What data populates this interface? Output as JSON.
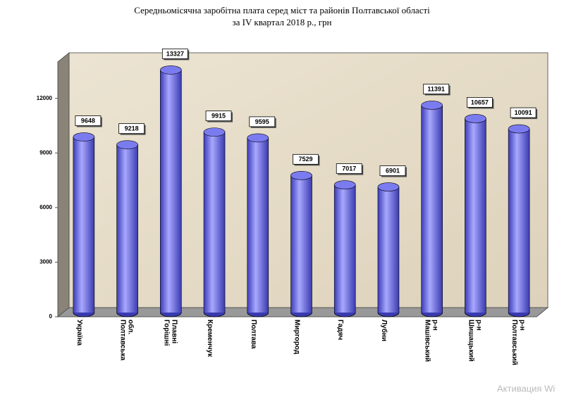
{
  "chart_data": {
    "type": "bar",
    "title": "Середньомісячна заробітна плата серед міст та районів Полтавської області",
    "subtitle": "за IV квартал 2018 р., грн",
    "categories": [
      "Україна",
      "Полтавська обл.",
      "Горішні Плавні",
      "Кременчук",
      "Полтава",
      "Миргород",
      "Гадяч",
      "Лубни",
      "Машівський р-н",
      "Шишацький р-н",
      "Полтавський р-н"
    ],
    "values": [
      9648,
      9218,
      13327,
      9915,
      9595,
      7529,
      7017,
      6901,
      11391,
      10657,
      10091
    ],
    "color": "#7b7bf0",
    "ylim": [
      0,
      14000
    ],
    "yticks": [
      0,
      3000,
      6000,
      9000,
      12000
    ],
    "grid": false,
    "watermark": "Активация Wi"
  }
}
